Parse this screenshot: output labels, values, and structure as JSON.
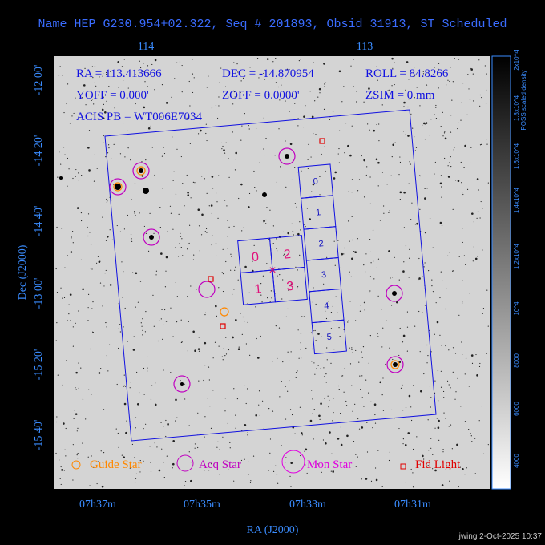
{
  "title": "Name HEP G230.954+02.322, Seq # 201893, Obsid 31913, ST Scheduled",
  "top_axis": {
    "ticks": [
      "114",
      "113"
    ]
  },
  "left_axis": {
    "label": "Dec (J2000)",
    "ticks": [
      "-12 00'",
      "-14 20'",
      "-14 40'",
      "-13 00'",
      "-15 20'",
      "-15 40'"
    ]
  },
  "bottom_axis": {
    "label": "RA (J2000)",
    "ticks": [
      "07h37m",
      "07h35m",
      "07h33m",
      "07h31m"
    ]
  },
  "info": [
    "RA = 113.413666",
    "DEC = -14.870954",
    "ROLL = 84.8266",
    "YOFF = 0.000'",
    "ZOFF = 0.0000'",
    "ZSIM = 0 mm",
    "ACIS PB = WT006E7034"
  ],
  "acis_s_chips": [
    "0",
    "1",
    "2",
    "3",
    "4",
    "5"
  ],
  "acis_i_chips": [
    "0",
    "2",
    "1",
    "3"
  ],
  "legend": [
    "Guide Star",
    "Acq Star",
    "Mon Star",
    "Fid Light"
  ],
  "colorbar": {
    "label": "POSS scaled density",
    "ticks": [
      "2x10^4",
      "1.8x10^4",
      "1.6x10^4",
      "1.4x10^4",
      "1.2x10^4",
      "10^4",
      "8000",
      "6000",
      "4000"
    ]
  },
  "footer": "jwing  2-Oct-2025 10:37"
}
